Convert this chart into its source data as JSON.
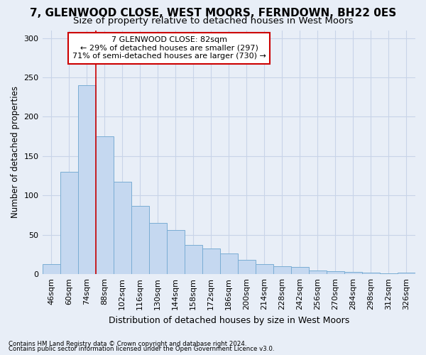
{
  "title": "7, GLENWOOD CLOSE, WEST MOORS, FERNDOWN, BH22 0ES",
  "subtitle": "Size of property relative to detached houses in West Moors",
  "xlabel": "Distribution of detached houses by size in West Moors",
  "ylabel": "Number of detached properties",
  "categories": [
    "46sqm",
    "60sqm",
    "74sqm",
    "88sqm",
    "102sqm",
    "116sqm",
    "130sqm",
    "144sqm",
    "158sqm",
    "172sqm",
    "186sqm",
    "200sqm",
    "214sqm",
    "228sqm",
    "242sqm",
    "256sqm",
    "270sqm",
    "284sqm",
    "298sqm",
    "312sqm",
    "326sqm"
  ],
  "bar_heights": [
    13,
    130,
    240,
    175,
    117,
    87,
    65,
    56,
    37,
    33,
    26,
    18,
    13,
    10,
    9,
    5,
    4,
    3,
    2,
    1,
    2
  ],
  "bar_color": "#c5d8f0",
  "bar_edge_color": "#7aadd4",
  "vline_color": "#cc0000",
  "vline_pos": 2.5,
  "annotation_text": "7 GLENWOOD CLOSE: 82sqm\n← 29% of detached houses are smaller (297)\n71% of semi-detached houses are larger (730) →",
  "annotation_box_color": "#ffffff",
  "annotation_box_edge": "#cc0000",
  "ylim": [
    0,
    310
  ],
  "yticks": [
    0,
    50,
    100,
    150,
    200,
    250,
    300
  ],
  "footer1": "Contains HM Land Registry data © Crown copyright and database right 2024.",
  "footer2": "Contains public sector information licensed under the Open Government Licence v3.0.",
  "bg_color": "#e8eef7",
  "plot_bg_color": "#e8eef7",
  "grid_color": "#c8d4e8",
  "title_fontsize": 11,
  "subtitle_fontsize": 9.5,
  "ylabel_fontsize": 8.5,
  "xlabel_fontsize": 9,
  "tick_fontsize": 8
}
